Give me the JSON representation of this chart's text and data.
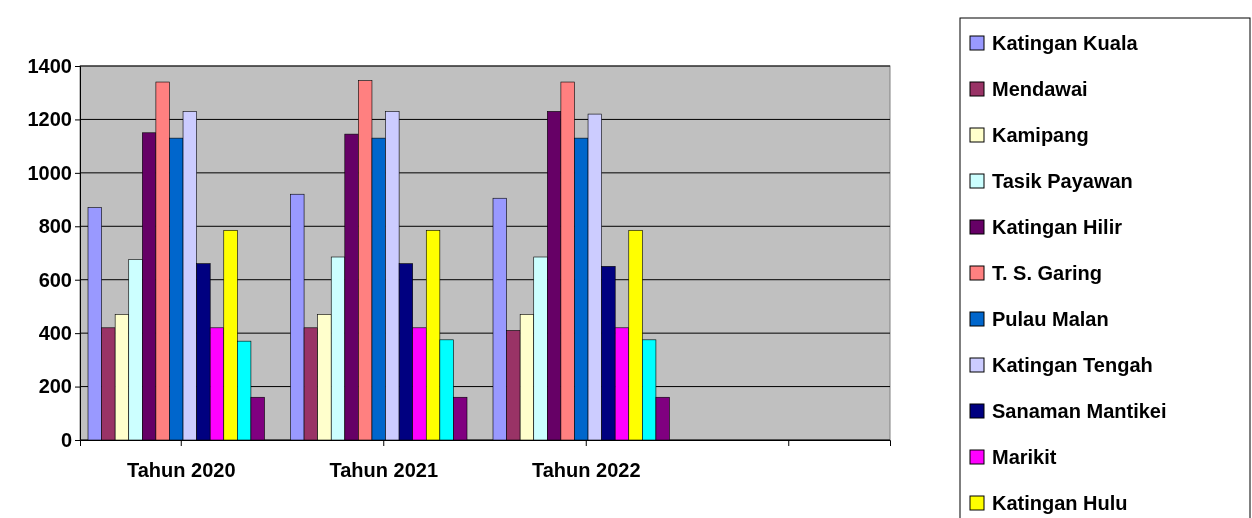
{
  "chart_data": {
    "type": "bar",
    "categories": [
      "Tahun 2020",
      "Tahun 2021",
      "Tahun 2022",
      null
    ],
    "series": [
      {
        "name": "Katingan Kuala",
        "color": "#9999ff",
        "values": [
          870,
          920,
          905,
          null
        ]
      },
      {
        "name": "Mendawai",
        "color": "#993366",
        "values": [
          420,
          420,
          410,
          null
        ]
      },
      {
        "name": "Kamipang",
        "color": "#ffffcc",
        "values": [
          470,
          470,
          470,
          null
        ]
      },
      {
        "name": "Tasik Payawan",
        "color": "#ccffff",
        "values": [
          675,
          685,
          685,
          null
        ]
      },
      {
        "name": "Katingan Hilir",
        "color": "#660066",
        "values": [
          1150,
          1145,
          1230,
          null
        ]
      },
      {
        "name": "T. S. Garing",
        "color": "#ff8080",
        "values": [
          1340,
          1345,
          1340,
          null
        ]
      },
      {
        "name": "Pulau Malan",
        "color": "#0066cc",
        "values": [
          1130,
          1130,
          1130,
          null
        ]
      },
      {
        "name": "Katingan Tengah",
        "color": "#ccccff",
        "values": [
          1230,
          1230,
          1220,
          null
        ]
      },
      {
        "name": "Sanaman Mantikei",
        "color": "#000080",
        "values": [
          660,
          660,
          650,
          null
        ]
      },
      {
        "name": "Marikit",
        "color": "#ff00ff",
        "values": [
          420,
          420,
          420,
          null
        ]
      },
      {
        "name": "Katingan Hulu",
        "color": "#ffff00",
        "values": [
          785,
          785,
          785,
          null
        ]
      },
      {
        "color": "#00ffff",
        "values": [
          370,
          375,
          375,
          null
        ]
      },
      {
        "color": "#800080",
        "values": [
          160,
          160,
          160,
          null
        ]
      }
    ],
    "ylim": [
      0,
      1400
    ],
    "yticks": [
      0,
      200,
      400,
      600,
      800,
      1000,
      1200,
      1400
    ],
    "grid": "y",
    "legend": "right"
  }
}
